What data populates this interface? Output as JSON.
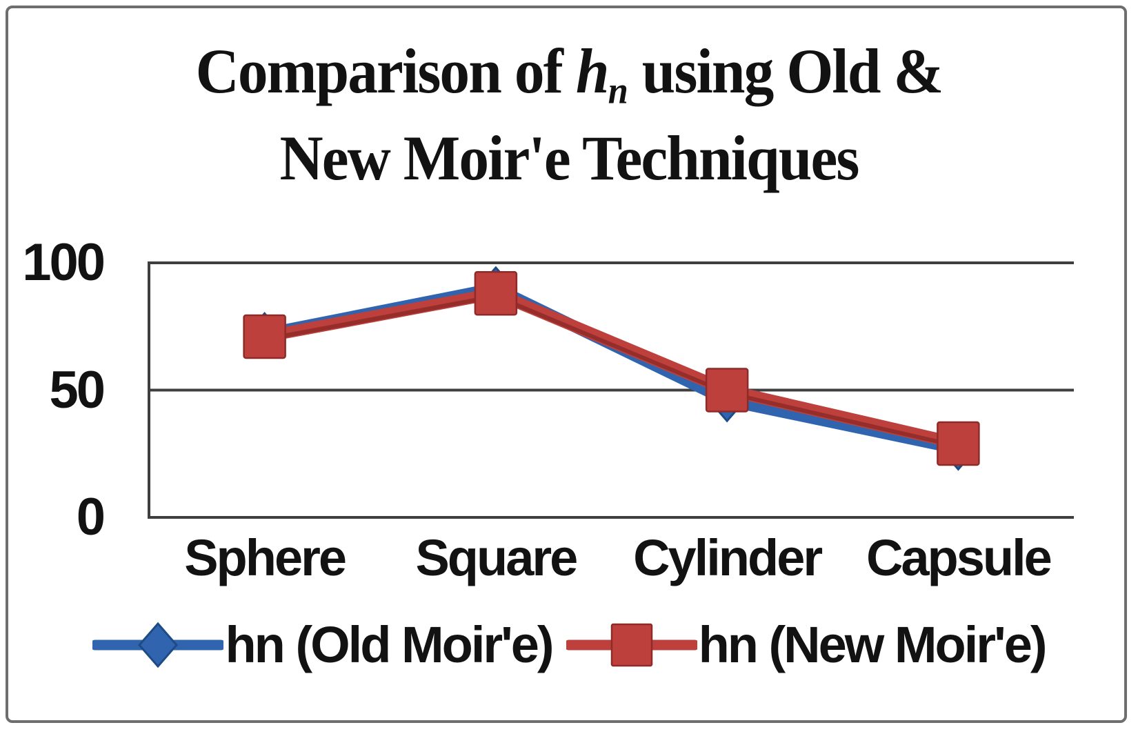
{
  "title": {
    "pre": "Comparison of ",
    "var": "h",
    "sub": "n",
    "post": " using Old &",
    "line2": "New Moir'e Techniques"
  },
  "chart_data": {
    "type": "line",
    "title": "Comparison of hn using Old & New Moir'e Techniques",
    "categories": [
      "Sphere",
      "Square",
      "Cylinder",
      "Capsule"
    ],
    "series": [
      {
        "name": "hn (Old Moir'e)",
        "marker": "diamond",
        "color": "#3164AE",
        "edge": "#1D4B85",
        "values": [
          72,
          90,
          46,
          27
        ]
      },
      {
        "name": "hn (New Moir'e)",
        "marker": "square",
        "color": "#BE403C",
        "edge": "#8E2B28",
        "values": [
          71,
          88,
          50,
          29
        ]
      }
    ],
    "xlabel": "",
    "ylabel": "",
    "ylim": [
      0,
      100
    ],
    "yticks": [
      0,
      50,
      100
    ],
    "grid": true,
    "legend_position": "bottom",
    "axis_color": "#3F3F3F",
    "text_color": "#121212"
  }
}
